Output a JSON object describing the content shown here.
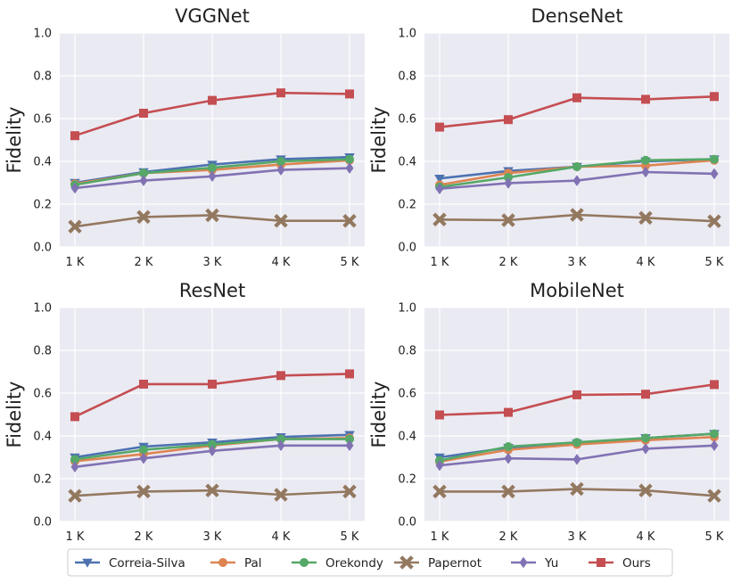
{
  "chart_data": {
    "type": "line",
    "layout": "2x2 grid",
    "categories": [
      "1 K",
      "2 K",
      "3 K",
      "4 K",
      "5 K"
    ],
    "ylabel": "Fidelity",
    "ylim": [
      0.0,
      1.0
    ],
    "yticks": [
      "0.0",
      "0.2",
      "0.4",
      "0.6",
      "0.8",
      "1.0"
    ],
    "grid": true,
    "legend": {
      "position": "bottom",
      "entries": [
        {
          "name": "Correia-Silva",
          "color": "#4c72b0",
          "marker": "triangle-down"
        },
        {
          "name": "Pal",
          "color": "#dd8452",
          "marker": "circle"
        },
        {
          "name": "Orekondy",
          "color": "#55a868",
          "marker": "circle"
        },
        {
          "name": "Papernot",
          "color": "#937860",
          "marker": "x"
        },
        {
          "name": "Yu",
          "color": "#8172b3",
          "marker": "diamond"
        },
        {
          "name": "Ours",
          "color": "#c44e52",
          "marker": "square"
        }
      ]
    },
    "panels": [
      {
        "title": "VGGNet",
        "series": [
          {
            "name": "Correia-Silva",
            "values": [
              0.3,
              0.35,
              0.385,
              0.41,
              0.42
            ]
          },
          {
            "name": "Pal",
            "values": [
              0.295,
              0.345,
              0.36,
              0.385,
              0.405
            ]
          },
          {
            "name": "Orekondy",
            "values": [
              0.29,
              0.345,
              0.37,
              0.4,
              0.41
            ]
          },
          {
            "name": "Papernot",
            "values": [
              0.095,
              0.14,
              0.148,
              0.122,
              0.122
            ]
          },
          {
            "name": "Yu",
            "values": [
              0.275,
              0.31,
              0.33,
              0.36,
              0.368
            ]
          },
          {
            "name": "Ours",
            "values": [
              0.52,
              0.625,
              0.685,
              0.72,
              0.715
            ]
          }
        ]
      },
      {
        "title": "DenseNet",
        "series": [
          {
            "name": "Correia-Silva",
            "values": [
              0.32,
              0.355,
              0.375,
              0.4,
              0.41
            ]
          },
          {
            "name": "Pal",
            "values": [
              0.29,
              0.345,
              0.375,
              0.38,
              0.405
            ]
          },
          {
            "name": "Orekondy",
            "values": [
              0.28,
              0.325,
              0.375,
              0.405,
              0.41
            ]
          },
          {
            "name": "Papernot",
            "values": [
              0.128,
              0.125,
              0.15,
              0.136,
              0.12
            ]
          },
          {
            "name": "Yu",
            "values": [
              0.272,
              0.298,
              0.31,
              0.35,
              0.342
            ]
          },
          {
            "name": "Ours",
            "values": [
              0.56,
              0.595,
              0.697,
              0.69,
              0.703
            ]
          }
        ]
      },
      {
        "title": "ResNet",
        "series": [
          {
            "name": "Correia-Silva",
            "values": [
              0.3,
              0.35,
              0.37,
              0.395,
              0.405
            ]
          },
          {
            "name": "Pal",
            "values": [
              0.282,
              0.315,
              0.355,
              0.385,
              0.39
            ]
          },
          {
            "name": "Orekondy",
            "values": [
              0.29,
              0.335,
              0.36,
              0.385,
              0.385
            ]
          },
          {
            "name": "Papernot",
            "values": [
              0.12,
              0.14,
              0.145,
              0.125,
              0.14
            ]
          },
          {
            "name": "Yu",
            "values": [
              0.255,
              0.295,
              0.33,
              0.355,
              0.355
            ]
          },
          {
            "name": "Ours",
            "values": [
              0.49,
              0.642,
              0.642,
              0.682,
              0.69
            ]
          }
        ]
      },
      {
        "title": "MobileNet",
        "series": [
          {
            "name": "Correia-Silva",
            "values": [
              0.3,
              0.345,
              0.365,
              0.39,
              0.41
            ]
          },
          {
            "name": "Pal",
            "values": [
              0.28,
              0.335,
              0.36,
              0.38,
              0.395
            ]
          },
          {
            "name": "Orekondy",
            "values": [
              0.285,
              0.35,
              0.37,
              0.39,
              0.41
            ]
          },
          {
            "name": "Papernot",
            "values": [
              0.14,
              0.14,
              0.152,
              0.145,
              0.12
            ]
          },
          {
            "name": "Yu",
            "values": [
              0.262,
              0.295,
              0.29,
              0.34,
              0.355
            ]
          },
          {
            "name": "Ours",
            "values": [
              0.498,
              0.51,
              0.592,
              0.595,
              0.64
            ]
          }
        ]
      }
    ]
  }
}
